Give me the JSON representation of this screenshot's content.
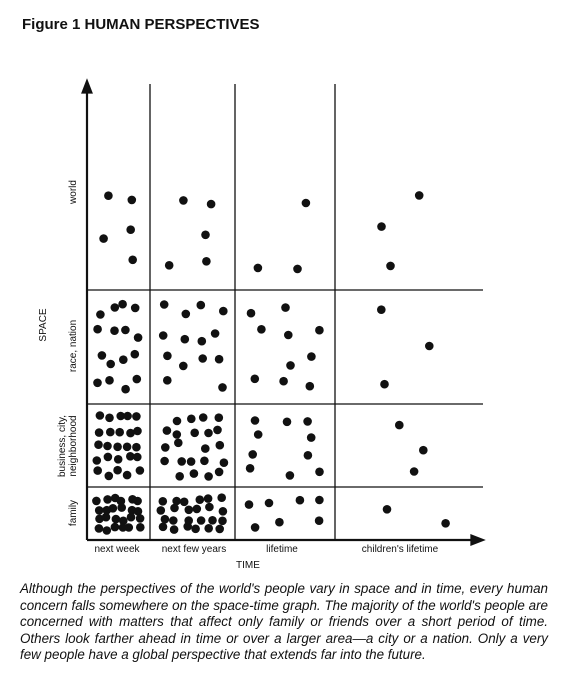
{
  "title": "Figure 1 HUMAN PERSPECTIVES",
  "axes": {
    "y_label": "SPACE",
    "x_label": "TIME"
  },
  "rows": [
    {
      "label": [
        "world"
      ]
    },
    {
      "label": [
        "race, nation"
      ]
    },
    {
      "label": [
        "business, city,",
        "neighborhood"
      ]
    },
    {
      "label": [
        "family"
      ]
    }
  ],
  "columns": [
    "next week",
    "next few years",
    "lifetime",
    "children's lifetime"
  ],
  "caption": "Although the perspectives of the world's people vary in space and in time, every human concern falls somewhere on the space-time graph. The majority of the world's people are concerned with matters that affect only family or friends over a short period of time. Others look farther ahead in time or over a larger area—a city or a nation. Only a very few people have a global perspective that extends far into the future."
}
